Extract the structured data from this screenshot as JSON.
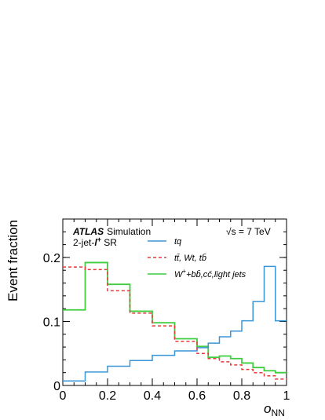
{
  "chart_data": {
    "type": "step-histogram",
    "title": "",
    "xlabel": "o",
    "xlabel_sub": "NN",
    "ylabel": "Event fraction",
    "xlim": [
      0,
      1
    ],
    "ylim": [
      0,
      0.26
    ],
    "x_ticks": [
      0,
      0.2,
      0.4,
      0.6,
      0.8,
      1
    ],
    "x_tick_labels": [
      "0",
      "0.2",
      "0.4",
      "0.6",
      "0.8",
      "1"
    ],
    "y_ticks": [
      0,
      0.1,
      0.2
    ],
    "y_tick_labels": [
      "0",
      "0.1",
      "0.2"
    ],
    "annotations": {
      "experiment": "ATLAS",
      "label": "Simulation",
      "region_prefix": "2-jet-",
      "region_lepton": "l",
      "region_charge": "+",
      "region_suffix": " SR",
      "energy": "√s = 7 TeV"
    },
    "legend": {
      "placement": "top-right"
    },
    "series": [
      {
        "name": "tq",
        "color": "#3a95d6",
        "style": "solid",
        "edges": [
          0,
          0.1,
          0.2,
          0.3,
          0.4,
          0.5,
          0.6,
          0.65,
          0.7,
          0.75,
          0.8,
          0.85,
          0.9,
          0.95,
          1.0
        ],
        "values": [
          0.007,
          0.021,
          0.03,
          0.039,
          0.047,
          0.054,
          0.059,
          0.066,
          0.076,
          0.085,
          0.101,
          0.131,
          0.186,
          0.101
        ]
      },
      {
        "name": "tt̄, Wt, tb̄",
        "color": "#e83a3a",
        "style": "dashed",
        "edges": [
          0,
          0.1,
          0.2,
          0.3,
          0.4,
          0.5,
          0.6,
          0.65,
          0.7,
          0.75,
          0.8,
          0.85,
          0.9,
          0.95,
          1.0
        ],
        "values": [
          0.185,
          0.181,
          0.148,
          0.113,
          0.093,
          0.069,
          0.05,
          0.042,
          0.037,
          0.032,
          0.025,
          0.02,
          0.015,
          0.01
        ]
      },
      {
        "name": "W+ + bb̄, cc̄, light jets",
        "color": "#3fcc3f",
        "style": "solid",
        "edges": [
          0,
          0.1,
          0.2,
          0.3,
          0.4,
          0.5,
          0.6,
          0.65,
          0.7,
          0.75,
          0.8,
          0.85,
          0.9,
          0.95,
          1.0
        ],
        "values": [
          0.118,
          0.192,
          0.158,
          0.116,
          0.098,
          0.073,
          0.061,
          0.044,
          0.046,
          0.042,
          0.035,
          0.028,
          0.023,
          0.02
        ]
      }
    ],
    "legend_labels": {
      "tq": "tq",
      "ttbar": "tt̄, Wt, tb̄",
      "wjets_main": "W",
      "wjets_sup": "+",
      "wjets_rest": "+bb̄,cc̄,light jets"
    }
  }
}
